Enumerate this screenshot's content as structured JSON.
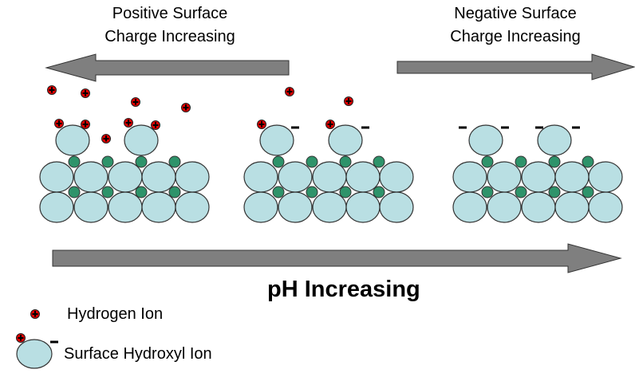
{
  "labels": {
    "positive_line1": "Positive Surface",
    "positive_line2": "Charge Increasing",
    "negative_line1": "Negative Surface",
    "negative_line2": "Charge Increasing",
    "ph": "pH Increasing"
  },
  "legend": {
    "hydrogen": "Hydrogen Ion",
    "hydroxyl": "Surface Hydroxyl Ion"
  },
  "colors": {
    "large_ion": "#b9dfe3",
    "small_ion": "#2e936a",
    "hydrogen_ion": "#e00000",
    "arrow": "#7f7f7f"
  }
}
